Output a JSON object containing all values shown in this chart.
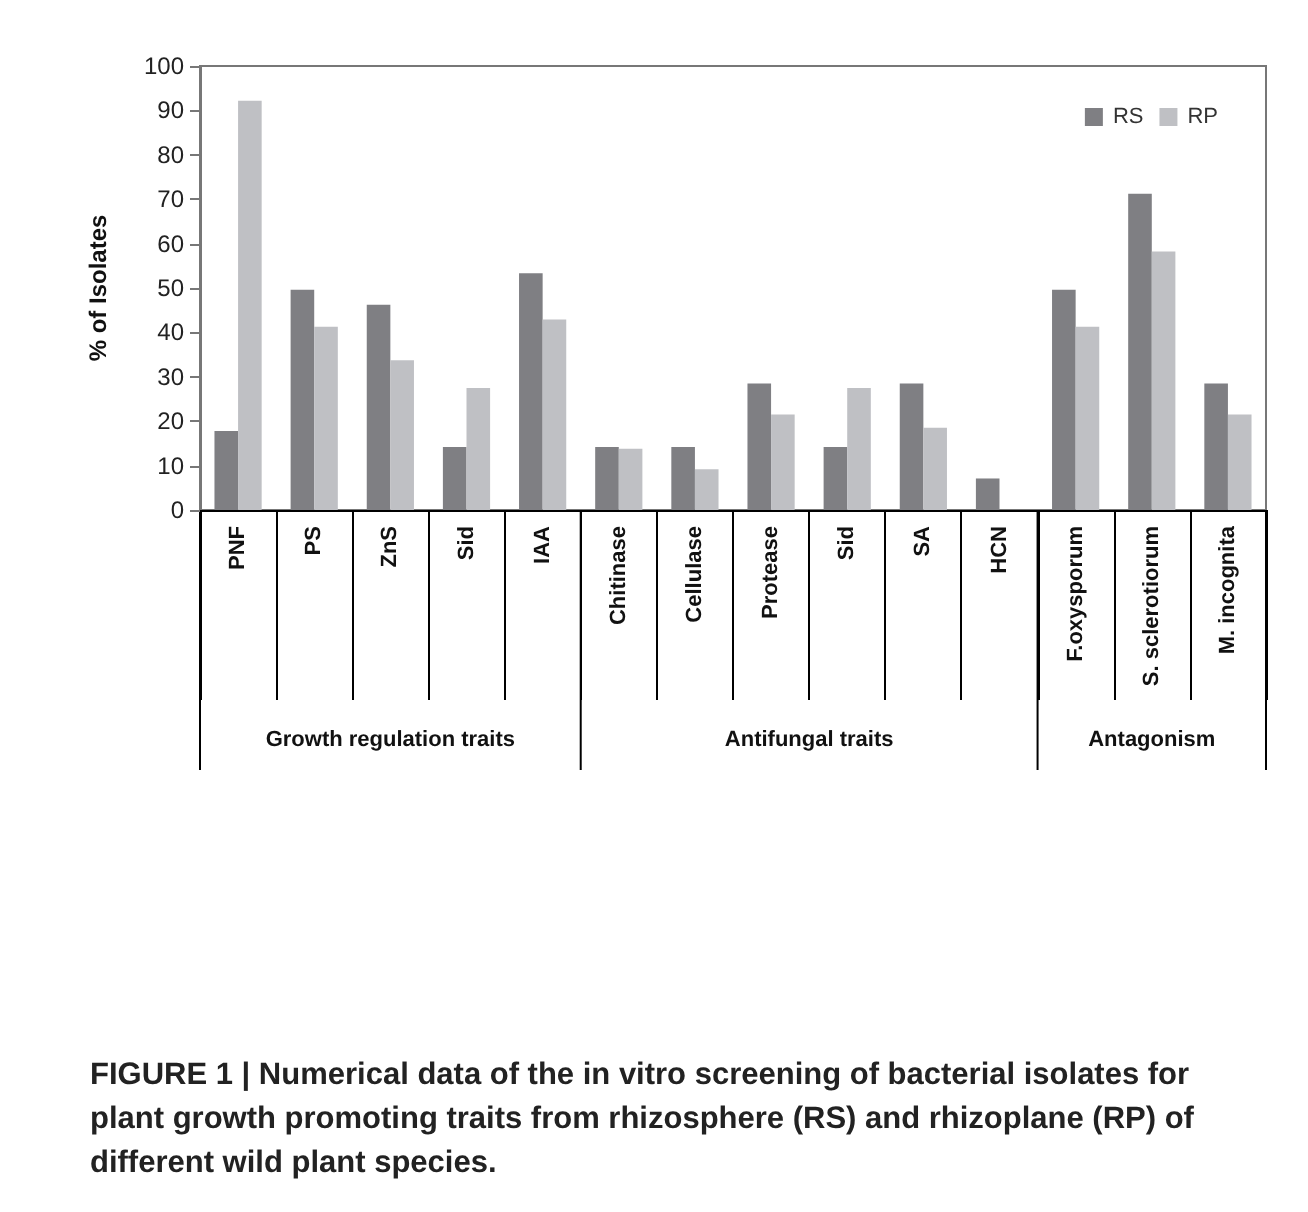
{
  "chart_data": {
    "type": "bar",
    "ylabel": "% of Isolates",
    "categories": [
      "PNF",
      "PS",
      "ZnS",
      "Sid",
      "IAA",
      "Chitinase",
      "Cellulase",
      "Protease",
      "Sid",
      "SA",
      "HCN",
      "F.oxysporum",
      "S. sclerotiorum",
      "M. incognita"
    ],
    "series": [
      {
        "name": "RS",
        "color": "#7f7f83",
        "values": [
          17.8,
          49.6,
          46.2,
          14.2,
          53.3,
          14.2,
          14.2,
          28.5,
          14.2,
          28.5,
          7.1,
          49.6,
          71.2,
          28.5
        ]
      },
      {
        "name": "RP",
        "color": "#bfc0c4",
        "values": [
          92.2,
          41.3,
          33.7,
          27.5,
          42.9,
          13.8,
          9.2,
          21.5,
          27.5,
          18.5,
          null,
          41.3,
          58.2,
          21.5
        ]
      }
    ],
    "ylim": [
      0,
      100
    ],
    "yticks": [
      0,
      10,
      20,
      30,
      40,
      50,
      60,
      70,
      80,
      90,
      100
    ],
    "legend": "top right",
    "annotations": [
      "Growth regulation traits",
      "Antifungal traits",
      "Antagonism",
      "FIGURE 1 | Numerical data of the in vitro screening of bacterial isolates for plant growth promoting traits from rhizosphere (RS) and rhizoplane (RP) of different wild plant species."
    ]
  }
}
